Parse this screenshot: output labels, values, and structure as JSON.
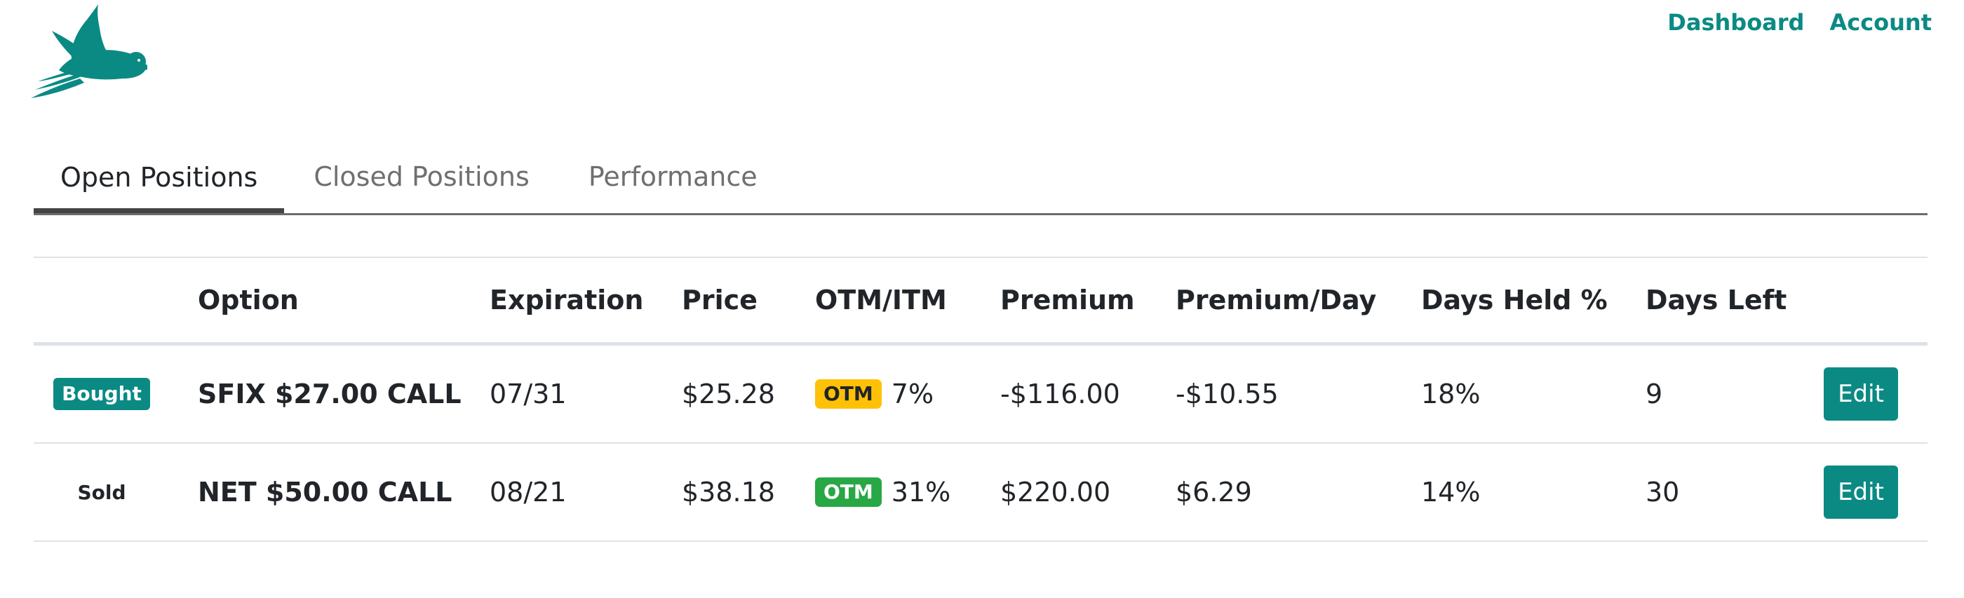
{
  "nav": {
    "dashboard": "Dashboard",
    "account": "Account"
  },
  "brand_color": "#0b8a84",
  "tabs": [
    {
      "label": "Open Positions",
      "active": true
    },
    {
      "label": "Closed Positions",
      "active": false
    },
    {
      "label": "Performance",
      "active": false
    }
  ],
  "table": {
    "headers": {
      "option": "Option",
      "expiration": "Expiration",
      "price": "Price",
      "otm_itm": "OTM/ITM",
      "premium": "Premium",
      "premium_day": "Premium/Day",
      "days_held": "Days Held %",
      "days_left": "Days Left"
    },
    "rows": [
      {
        "type": "Bought",
        "option": "SFIX $27.00 CALL",
        "expiration": "07/31",
        "price": "$25.28",
        "otm_badge": "OTM",
        "otm_badge_color": "#ffc107",
        "otm_pct": "7%",
        "premium": "-$116.00",
        "premium_day": "-$10.55",
        "days_held": "18%",
        "days_left": "9",
        "edit": "Edit"
      },
      {
        "type": "Sold",
        "option": "NET $50.00 CALL",
        "expiration": "08/21",
        "price": "$38.18",
        "otm_badge": "OTM",
        "otm_badge_color": "#28a745",
        "otm_pct": "31%",
        "premium": "$220.00",
        "premium_day": "$6.29",
        "days_held": "14%",
        "days_left": "30",
        "edit": "Edit"
      }
    ]
  }
}
